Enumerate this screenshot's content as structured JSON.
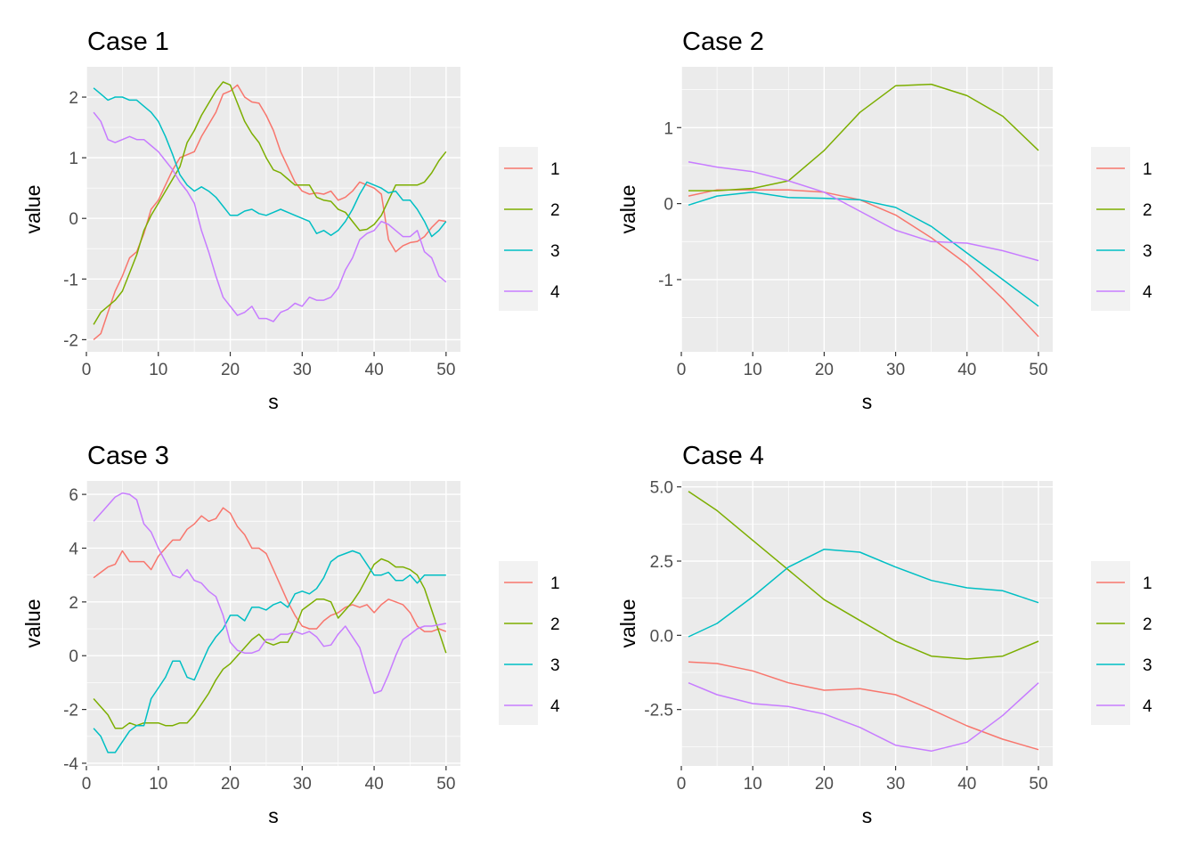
{
  "chart_data": [
    {
      "type": "line",
      "title": "Case 1",
      "xlabel": "s",
      "ylabel": "value",
      "xlim": [
        0,
        52
      ],
      "ylim": [
        -2.2,
        2.5
      ],
      "xticks": [
        "0",
        "10",
        "20",
        "30",
        "40",
        "50"
      ],
      "yticks": [
        "-2",
        "-1",
        "0",
        "1",
        "2"
      ],
      "legend_position": "right",
      "x": [
        1,
        2,
        3,
        4,
        5,
        6,
        7,
        8,
        9,
        10,
        11,
        12,
        13,
        14,
        15,
        16,
        17,
        18,
        19,
        20,
        21,
        22,
        23,
        24,
        25,
        26,
        27,
        28,
        29,
        30,
        31,
        32,
        33,
        34,
        35,
        36,
        37,
        38,
        39,
        40,
        41,
        42,
        43,
        44,
        45,
        46,
        47,
        48,
        49,
        50
      ],
      "series": [
        {
          "name": "1",
          "color": "#F8766D",
          "values": [
            -2.0,
            -1.9,
            -1.55,
            -1.2,
            -0.95,
            -0.65,
            -0.55,
            -0.25,
            0.15,
            0.3,
            0.55,
            0.8,
            1.0,
            1.05,
            1.1,
            1.35,
            1.55,
            1.75,
            2.05,
            2.1,
            2.2,
            2.0,
            1.92,
            1.9,
            1.7,
            1.45,
            1.1,
            0.85,
            0.6,
            0.45,
            0.4,
            0.42,
            0.4,
            0.45,
            0.3,
            0.35,
            0.45,
            0.6,
            0.55,
            0.5,
            0.4,
            -0.35,
            -0.55,
            -0.45,
            -0.4,
            -0.38,
            -0.3,
            -0.15,
            -0.03,
            -0.05
          ]
        },
        {
          "name": "2",
          "color": "#7CAE00",
          "values": [
            -1.75,
            -1.55,
            -1.45,
            -1.35,
            -1.2,
            -0.9,
            -0.6,
            -0.2,
            0.05,
            0.25,
            0.45,
            0.65,
            0.85,
            1.25,
            1.45,
            1.7,
            1.9,
            2.1,
            2.25,
            2.2,
            1.9,
            1.6,
            1.4,
            1.25,
            1.0,
            0.8,
            0.75,
            0.65,
            0.55,
            0.55,
            0.55,
            0.35,
            0.3,
            0.28,
            0.15,
            0.1,
            -0.05,
            -0.2,
            -0.18,
            -0.1,
            0.05,
            0.3,
            0.55,
            0.55,
            0.55,
            0.55,
            0.6,
            0.75,
            0.95,
            1.1
          ]
        },
        {
          "name": "3",
          "color": "#00BFC4",
          "values": [
            2.15,
            2.05,
            1.95,
            2.0,
            2.0,
            1.95,
            1.95,
            1.85,
            1.75,
            1.6,
            1.35,
            1.05,
            0.72,
            0.55,
            0.45,
            0.52,
            0.45,
            0.35,
            0.2,
            0.05,
            0.05,
            0.12,
            0.15,
            0.08,
            0.05,
            0.1,
            0.15,
            0.1,
            0.05,
            0.0,
            -0.05,
            -0.25,
            -0.2,
            -0.28,
            -0.2,
            -0.05,
            0.15,
            0.4,
            0.6,
            0.55,
            0.5,
            0.42,
            0.45,
            0.3,
            0.3,
            0.15,
            -0.05,
            -0.3,
            -0.2,
            -0.05
          ]
        },
        {
          "name": "4",
          "color": "#C77CFF",
          "values": [
            1.75,
            1.6,
            1.3,
            1.25,
            1.3,
            1.35,
            1.3,
            1.3,
            1.2,
            1.1,
            0.95,
            0.8,
            0.6,
            0.45,
            0.25,
            -0.2,
            -0.55,
            -0.95,
            -1.3,
            -1.45,
            -1.6,
            -1.55,
            -1.45,
            -1.65,
            -1.65,
            -1.7,
            -1.55,
            -1.5,
            -1.4,
            -1.45,
            -1.3,
            -1.35,
            -1.35,
            -1.3,
            -1.15,
            -0.85,
            -0.65,
            -0.35,
            -0.25,
            -0.2,
            -0.05,
            -0.1,
            -0.2,
            -0.3,
            -0.3,
            -0.2,
            -0.55,
            -0.65,
            -0.95,
            -1.05
          ]
        }
      ]
    },
    {
      "type": "line",
      "title": "Case 2",
      "xlabel": "s",
      "ylabel": "value",
      "xlim": [
        0,
        52
      ],
      "ylim": [
        -1.95,
        1.8
      ],
      "xticks": [
        "0",
        "10",
        "20",
        "30",
        "40",
        "50"
      ],
      "yticks": [
        "-1",
        "0",
        "1"
      ],
      "legend_position": "right",
      "x": [
        1,
        5,
        10,
        15,
        20,
        25,
        30,
        35,
        40,
        45,
        50
      ],
      "series": [
        {
          "name": "1",
          "color": "#F8766D",
          "values": [
            0.1,
            0.18,
            0.18,
            0.18,
            0.15,
            0.05,
            -0.15,
            -0.45,
            -0.8,
            -1.25,
            -1.75
          ]
        },
        {
          "name": "2",
          "color": "#7CAE00",
          "values": [
            0.17,
            0.17,
            0.2,
            0.3,
            0.7,
            1.2,
            1.55,
            1.57,
            1.42,
            1.15,
            0.7
          ]
        },
        {
          "name": "3",
          "color": "#00BFC4",
          "values": [
            -0.02,
            0.1,
            0.15,
            0.08,
            0.07,
            0.05,
            -0.05,
            -0.3,
            -0.65,
            -1.0,
            -1.35
          ]
        },
        {
          "name": "4",
          "color": "#C77CFF",
          "values": [
            0.55,
            0.48,
            0.42,
            0.3,
            0.15,
            -0.1,
            -0.35,
            -0.5,
            -0.52,
            -0.62,
            -0.75
          ]
        }
      ]
    },
    {
      "type": "line",
      "title": "Case 3",
      "xlabel": "s",
      "ylabel": "value",
      "xlim": [
        0,
        52
      ],
      "ylim": [
        -4.1,
        6.5
      ],
      "xticks": [
        "0",
        "10",
        "20",
        "30",
        "40",
        "50"
      ],
      "yticks": [
        "-4",
        "-2",
        "0",
        "2",
        "4",
        "6"
      ],
      "legend_position": "right",
      "x": [
        1,
        2,
        3,
        4,
        5,
        6,
        7,
        8,
        9,
        10,
        11,
        12,
        13,
        14,
        15,
        16,
        17,
        18,
        19,
        20,
        21,
        22,
        23,
        24,
        25,
        26,
        27,
        28,
        29,
        30,
        31,
        32,
        33,
        34,
        35,
        36,
        37,
        38,
        39,
        40,
        41,
        42,
        43,
        44,
        45,
        46,
        47,
        48,
        49,
        50
      ],
      "series": [
        {
          "name": "1",
          "color": "#F8766D",
          "values": [
            2.9,
            3.1,
            3.3,
            3.4,
            3.9,
            3.5,
            3.5,
            3.5,
            3.2,
            3.7,
            4.0,
            4.3,
            4.3,
            4.7,
            4.9,
            5.2,
            5.0,
            5.1,
            5.5,
            5.3,
            4.8,
            4.5,
            4.0,
            4.0,
            3.8,
            3.2,
            2.6,
            2.0,
            1.5,
            1.1,
            1.0,
            1.0,
            1.3,
            1.5,
            1.6,
            1.8,
            1.9,
            1.8,
            1.9,
            1.6,
            1.9,
            2.1,
            2.0,
            1.9,
            1.6,
            1.1,
            0.9,
            0.9,
            1.0,
            0.9
          ]
        },
        {
          "name": "2",
          "color": "#7CAE00",
          "values": [
            -1.6,
            -1.9,
            -2.2,
            -2.7,
            -2.7,
            -2.5,
            -2.6,
            -2.5,
            -2.5,
            -2.5,
            -2.6,
            -2.6,
            -2.5,
            -2.5,
            -2.2,
            -1.8,
            -1.4,
            -0.9,
            -0.5,
            -0.3,
            0.0,
            0.3,
            0.6,
            0.8,
            0.5,
            0.4,
            0.5,
            0.5,
            1.0,
            1.7,
            1.9,
            2.1,
            2.1,
            2.0,
            1.4,
            1.7,
            2.0,
            2.4,
            2.9,
            3.4,
            3.6,
            3.5,
            3.3,
            3.3,
            3.2,
            3.0,
            2.5,
            1.7,
            0.9,
            0.1
          ]
        },
        {
          "name": "3",
          "color": "#00BFC4",
          "values": [
            -2.7,
            -3.0,
            -3.6,
            -3.6,
            -3.2,
            -2.8,
            -2.6,
            -2.6,
            -1.6,
            -1.2,
            -0.8,
            -0.2,
            -0.2,
            -0.8,
            -0.9,
            -0.3,
            0.3,
            0.7,
            1.0,
            1.5,
            1.5,
            1.3,
            1.8,
            1.8,
            1.7,
            1.9,
            2.0,
            1.8,
            2.3,
            2.4,
            2.3,
            2.5,
            2.9,
            3.5,
            3.7,
            3.8,
            3.9,
            3.8,
            3.4,
            3.0,
            3.0,
            3.1,
            2.8,
            2.8,
            3.0,
            2.7,
            3.0,
            3.0,
            3.0,
            3.0
          ]
        },
        {
          "name": "4",
          "color": "#C77CFF",
          "values": [
            5.0,
            5.3,
            5.6,
            5.9,
            6.05,
            6.0,
            5.8,
            4.9,
            4.6,
            4.0,
            3.5,
            3.0,
            2.9,
            3.2,
            2.8,
            2.7,
            2.4,
            2.2,
            1.5,
            0.5,
            0.2,
            0.1,
            0.1,
            0.2,
            0.6,
            0.6,
            0.8,
            0.8,
            0.9,
            0.8,
            0.9,
            0.7,
            0.35,
            0.4,
            0.8,
            1.1,
            0.7,
            0.3,
            -0.6,
            -1.4,
            -1.3,
            -0.7,
            0.0,
            0.6,
            0.8,
            1.0,
            1.1,
            1.1,
            1.15,
            1.2
          ]
        }
      ]
    },
    {
      "type": "line",
      "title": "Case 4",
      "xlabel": "s",
      "ylabel": "value",
      "xlim": [
        0,
        52
      ],
      "ylim": [
        -4.4,
        5.2
      ],
      "xticks": [
        "0",
        "10",
        "20",
        "30",
        "40",
        "50"
      ],
      "yticks": [
        "-2.5",
        "0.0",
        "2.5",
        "5.0"
      ],
      "yticks_values": [
        -2.5,
        0,
        2.5,
        5.0
      ],
      "legend_position": "right",
      "x": [
        1,
        5,
        10,
        15,
        20,
        25,
        30,
        35,
        40,
        45,
        50
      ],
      "series": [
        {
          "name": "1",
          "color": "#F8766D",
          "values": [
            -0.9,
            -0.95,
            -1.2,
            -1.6,
            -1.85,
            -1.8,
            -2.0,
            -2.5,
            -3.05,
            -3.5,
            -3.85
          ]
        },
        {
          "name": "2",
          "color": "#7CAE00",
          "values": [
            4.85,
            4.2,
            3.2,
            2.2,
            1.2,
            0.5,
            -0.2,
            -0.7,
            -0.8,
            -0.7,
            -0.2
          ]
        },
        {
          "name": "3",
          "color": "#00BFC4",
          "values": [
            -0.05,
            0.4,
            1.3,
            2.3,
            2.9,
            2.8,
            2.3,
            1.85,
            1.6,
            1.5,
            1.1
          ]
        },
        {
          "name": "4",
          "color": "#C77CFF",
          "values": [
            -1.6,
            -2.0,
            -2.3,
            -2.4,
            -2.65,
            -3.1,
            -3.7,
            -3.9,
            -3.6,
            -2.7,
            -1.6
          ]
        }
      ]
    }
  ]
}
